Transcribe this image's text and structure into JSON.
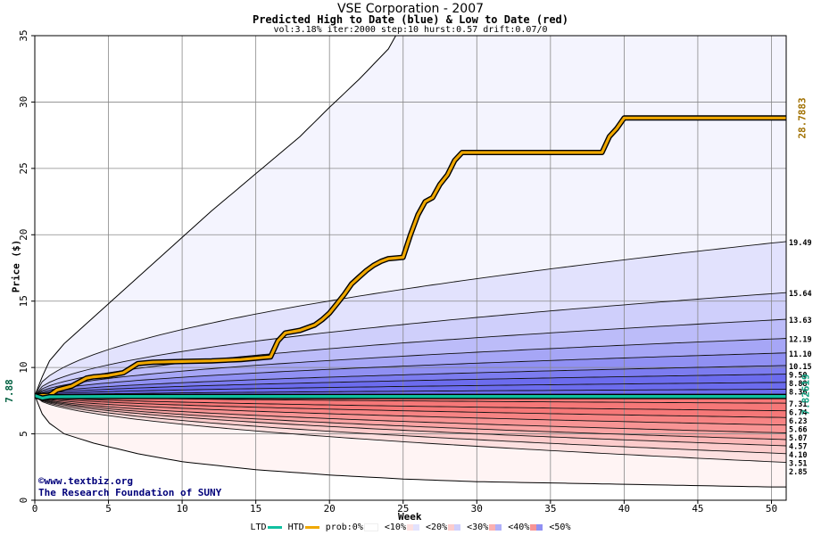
{
  "header": {
    "title": "VSE Corporation - 2007",
    "subtitle": "Predicted High to Date (blue) &  Low to Date (red)",
    "params": "vol:3.18% iter:2000 step:10 hurst:0.57 drift:0.07/0"
  },
  "credits": {
    "url": "©www.textbiz.org",
    "org": "The Research Foundation of SUNY"
  },
  "annotations": {
    "start_price": "7.88",
    "end_low": "7.82619",
    "end_high": "28.7883"
  },
  "legend": {
    "ltd": "LTD",
    "htd": "HTD",
    "prob": "prob:0%",
    "bins": [
      "<10%",
      "<20%",
      "<30%",
      "<40%",
      "<50%"
    ]
  },
  "colors": {
    "htd_line": "#f0a800",
    "ltd_line": "#10c0a0",
    "blue_bands": [
      "#f4f4fe",
      "#e2e2fd",
      "#cfcffb",
      "#bcbcf9",
      "#a6a6f6",
      "#9090f3",
      "#7c7cf0",
      "#6c6cee"
    ],
    "red_bands": [
      "#fff4f4",
      "#fde0e0",
      "#fccccc",
      "#fbb8b8",
      "#faa4a4",
      "#f89494",
      "#f78484",
      "#f67878"
    ]
  },
  "chart_data": {
    "type": "area",
    "xlabel": "Week",
    "ylabel": "Price ($)",
    "xlim": [
      0,
      51
    ],
    "ylim": [
      0,
      35
    ],
    "xticks": [
      0,
      5,
      10,
      15,
      20,
      25,
      30,
      35,
      40,
      45,
      50
    ],
    "yticks": [
      0,
      5,
      10,
      15,
      20,
      25,
      30,
      35
    ],
    "grid": true,
    "start_value": 7.88,
    "high_quantile_end_labels": [
      "19.49",
      "15.64",
      "13.63",
      "12.19",
      "11.10",
      "10.15",
      "9.50",
      "8.88",
      "8.36"
    ],
    "high_quantile_end_values": [
      19.49,
      15.64,
      13.63,
      12.19,
      11.1,
      10.15,
      9.5,
      8.88,
      8.36
    ],
    "outer_high_envelope": {
      "x": [
        0,
        0.5,
        1,
        2,
        3,
        5,
        8,
        10,
        12,
        15,
        18,
        20,
        22,
        24,
        24.5
      ],
      "y": [
        7.88,
        9.3,
        10.5,
        11.8,
        12.8,
        14.8,
        17.8,
        19.8,
        21.8,
        24.6,
        27.4,
        29.6,
        31.7,
        34.0,
        35
      ]
    },
    "low_quantile_end_labels": [
      "7.31",
      "6.74",
      "6.23",
      "5.66",
      "5.07",
      "4.57",
      "4.10",
      "3.51",
      "2.85"
    ],
    "low_quantile_end_values": [
      7.31,
      6.74,
      6.23,
      5.66,
      5.07,
      4.57,
      4.1,
      3.51,
      2.85
    ],
    "outer_low_envelope": {
      "x": [
        0,
        0.5,
        1,
        2,
        4,
        7,
        10,
        15,
        20,
        25,
        30,
        35,
        40,
        45,
        50
      ],
      "y": [
        7.88,
        6.5,
        5.8,
        5.0,
        4.3,
        3.5,
        2.9,
        2.3,
        1.9,
        1.6,
        1.4,
        1.3,
        1.2,
        1.1,
        1.0
      ]
    },
    "series": [
      {
        "name": "HTD",
        "x": [
          0,
          1,
          1.5,
          2.5,
          3,
          3.5,
          4,
          5,
          6,
          7,
          8,
          10,
          12,
          14,
          15,
          16,
          16.5,
          17,
          18,
          19,
          19.5,
          20,
          20.5,
          21,
          21.5,
          22,
          22.5,
          23,
          23.5,
          24,
          25,
          25.5,
          26,
          26.5,
          27,
          27.5,
          28,
          28.5,
          29,
          35,
          38.5,
          39,
          39.5,
          40,
          45,
          50,
          51
        ],
        "y": [
          7.88,
          7.9,
          8.3,
          8.6,
          8.9,
          9.2,
          9.3,
          9.4,
          9.6,
          10.3,
          10.4,
          10.45,
          10.5,
          10.6,
          10.7,
          10.8,
          12.0,
          12.6,
          12.8,
          13.2,
          13.6,
          14.1,
          14.8,
          15.5,
          16.3,
          16.8,
          17.3,
          17.7,
          18.0,
          18.2,
          18.3,
          20.0,
          21.5,
          22.5,
          22.8,
          23.8,
          24.5,
          25.6,
          26.2,
          26.2,
          26.2,
          27.4,
          28.0,
          28.8,
          28.8,
          28.8,
          28.8
        ]
      },
      {
        "name": "LTD",
        "x": [
          0,
          0.5,
          1,
          2,
          5,
          10,
          20,
          30,
          40,
          50,
          51
        ],
        "y": [
          7.88,
          7.7,
          7.79,
          7.8,
          7.82,
          7.82,
          7.82,
          7.82,
          7.82,
          7.82,
          7.82
        ]
      }
    ]
  }
}
